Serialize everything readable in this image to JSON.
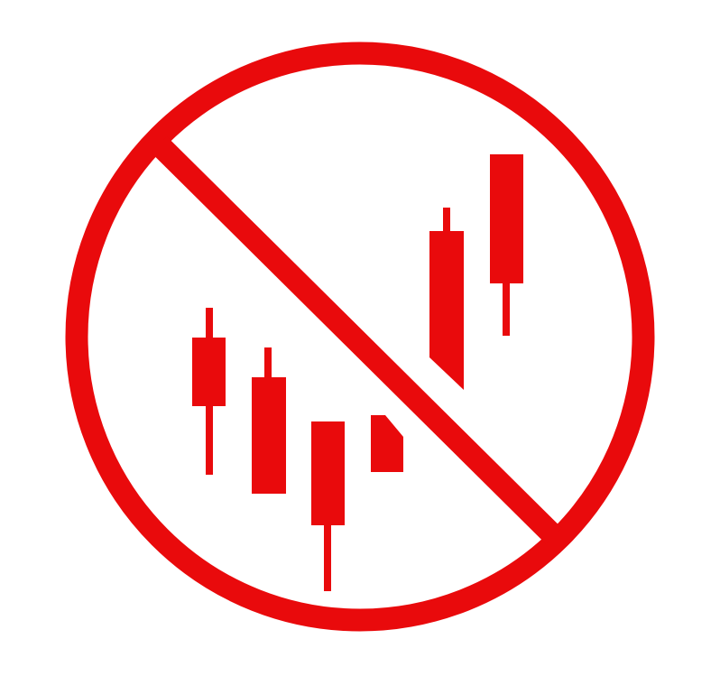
{
  "icon": {
    "name": "no-candlestick-chart-icon",
    "color": "#e90a0c",
    "background": "#ffffff"
  }
}
